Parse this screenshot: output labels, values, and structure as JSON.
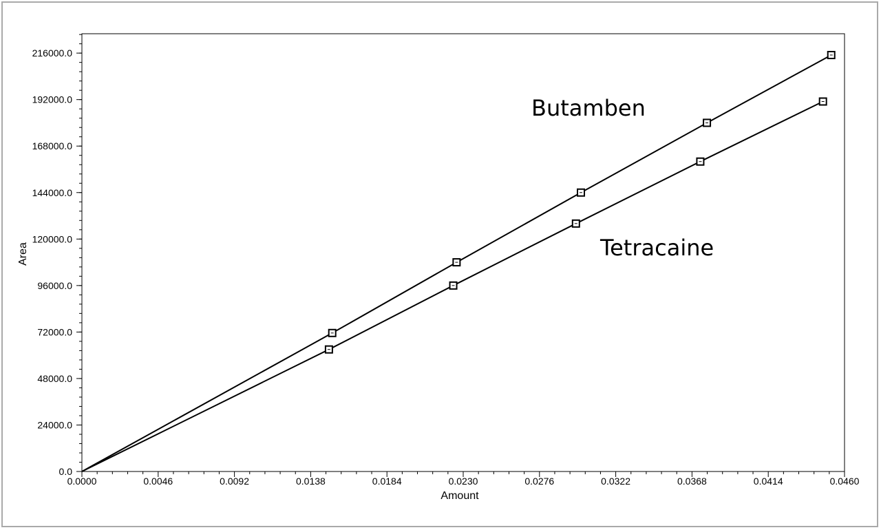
{
  "chart_data": {
    "type": "line",
    "title": "",
    "xlabel": "Amount",
    "ylabel": "Area",
    "xlim": [
      0.0,
      0.046
    ],
    "ylim": [
      0,
      226000
    ],
    "x_ticks": [
      "0.0000",
      "0.0046",
      "0.0092",
      "0.0138",
      "0.0184",
      "0.0230",
      "0.0276",
      "0.0322",
      "0.0368",
      "0.0414",
      "0.0460"
    ],
    "x_tick_values": [
      0.0,
      0.0046,
      0.0092,
      0.0138,
      0.0184,
      0.023,
      0.0276,
      0.0322,
      0.0368,
      0.0414,
      0.046
    ],
    "y_ticks": [
      "0.0",
      "24000.0",
      "48000.0",
      "72000.0",
      "96000.0",
      "120000.0",
      "144000.0",
      "168000.0",
      "192000.0",
      "216000.0"
    ],
    "y_tick_values": [
      0,
      24000,
      48000,
      72000,
      96000,
      120000,
      144000,
      168000,
      192000,
      216000
    ],
    "grid": false,
    "marker": "square",
    "line_color": "#000000",
    "series": [
      {
        "name": "Butamben",
        "x": [
          0.0,
          0.0151,
          0.0226,
          0.0301,
          0.0377,
          0.0452
        ],
        "y": [
          0,
          71500,
          108000,
          144000,
          180000,
          215000
        ]
      },
      {
        "name": "Tetracaine",
        "x": [
          0.0,
          0.0149,
          0.0224,
          0.0298,
          0.0373,
          0.0447
        ],
        "y": [
          0,
          63000,
          96000,
          128000,
          160000,
          191000
        ]
      }
    ]
  }
}
